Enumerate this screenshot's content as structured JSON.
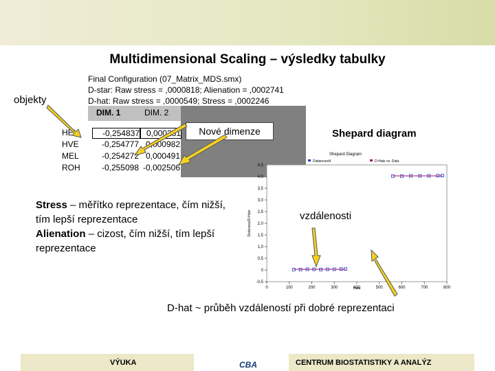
{
  "title": "Multidimensional Scaling – výsledky tabulky",
  "info": [
    "Final Configuration (07_Matrix_MDS.smx)",
    "D-star: Raw stress = ,0000818; Alienation = ,0002741",
    "D-hat: Raw stress = ,0000549; Stress = ,0002246"
  ],
  "table": {
    "header": [
      "DIM. 1",
      "DIM. 2"
    ],
    "rows": [
      [
        "HEL",
        "-0,254837",
        "0,000281"
      ],
      [
        "HVE",
        "-0,254777",
        "0,000982"
      ],
      [
        "MEL",
        "-0,254272",
        "0,000491"
      ],
      [
        "ROH",
        "-0,255098",
        "-0,002506"
      ]
    ]
  },
  "labels": {
    "objekty": "objekty",
    "dimenze": "Nové dimenze",
    "shepard": "Shepard diagram",
    "vzdalenosti": "vzdálenosti",
    "dhat": "D-hat ~ průběh vzdáleností při dobré reprezentaci"
  },
  "notes": [
    {
      "term": "Stress",
      "text": " – měřítko reprezentace, čím nižší, tím lepší reprezentace"
    },
    {
      "term": "Alienation",
      "text": " – cizost, čím nižší, tím lepší reprezentace"
    }
  ],
  "footer": {
    "left": "VÝUKA",
    "logo": "CBA",
    "right": "CENTRUM BIOSTATISTIKY A ANALÝZ"
  },
  "shepard_chart": {
    "type": "scatter",
    "title": "Shepard Diagram",
    "x_label": "Data",
    "y_label": "Distances/D-Hats",
    "xlim": [
      0,
      800
    ],
    "xticks": [
      0,
      100,
      200,
      300,
      400,
      500,
      600,
      700,
      800
    ],
    "ylim": [
      -0.5,
      4.5
    ],
    "yticks": [
      {
        "value": -0.5,
        "label": "-0,5"
      },
      0,
      {
        "value": 0.5,
        "label": "0,5"
      },
      {
        "value": 1,
        "label": "1,0"
      },
      {
        "value": 1.5,
        "label": "1,5"
      },
      {
        "value": 2,
        "label": "2,0"
      },
      {
        "value": 2.5,
        "label": "2,5"
      },
      {
        "value": 3,
        "label": "3,0"
      },
      {
        "value": 3.5,
        "label": "3,5"
      },
      {
        "value": 4,
        "label": "4,0"
      },
      {
        "value": 4.5,
        "label": "4,5"
      }
    ],
    "series": [
      {
        "name": "Distances/d",
        "color": "#2040c0",
        "x": [
          120,
          150,
          180,
          210,
          240,
          270,
          300,
          330,
          350,
          560,
          600,
          640,
          680,
          720,
          760,
          780
        ],
        "values": [
          0.02,
          0.02,
          0.03,
          0.03,
          0.02,
          0.03,
          0.03,
          0.04,
          0.04,
          4.02,
          4.02,
          4.03,
          4.03,
          4.03,
          4.04,
          4.04
        ]
      },
      {
        "name": "D-Hats vs. Data",
        "color": "#a01070",
        "x": [
          120,
          350,
          null,
          560,
          780
        ],
        "values": [
          0.03,
          0.03,
          null,
          4.03,
          4.03
        ]
      }
    ]
  }
}
